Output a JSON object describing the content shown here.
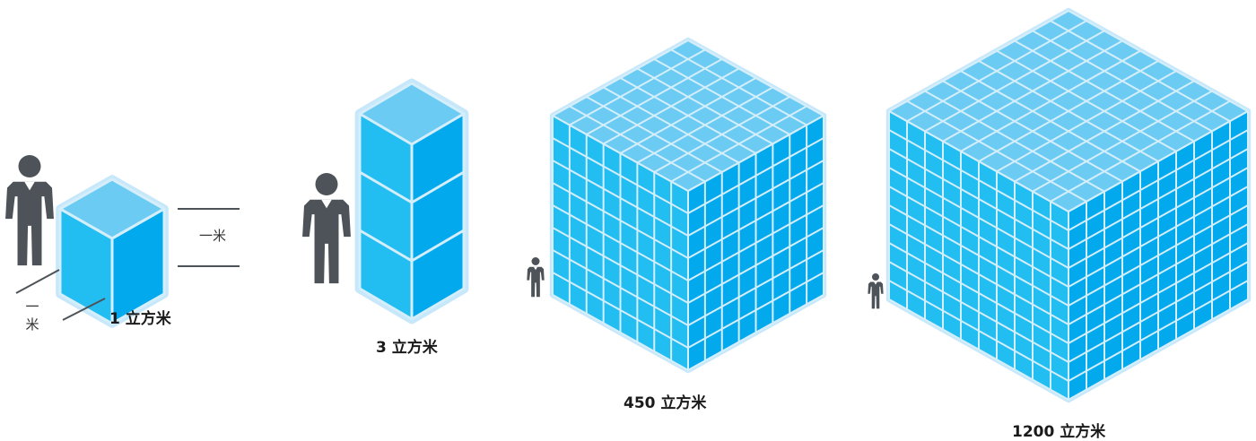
{
  "diagram": {
    "colors": {
      "frame": "#c7e8fa",
      "top": "#6ccbf3",
      "left": "#22bdf1",
      "right": "#03a9ed",
      "grid": "#d4eefb",
      "person": "#4d5358",
      "line": "#4d5358"
    },
    "dimension_labels": {
      "horizontal": "一米",
      "vertical": "一\n米"
    },
    "items": [
      {
        "volume_label": "1 立方米",
        "shape": "cube",
        "grid_units": 1
      },
      {
        "volume_label": "3 立方米",
        "shape": "column",
        "stack_units": 3
      },
      {
        "volume_label": "450 立方米",
        "shape": "cube",
        "grid_units": 8
      },
      {
        "volume_label": "1200 立方米",
        "shape": "cube",
        "grid_units": 10
      }
    ]
  }
}
